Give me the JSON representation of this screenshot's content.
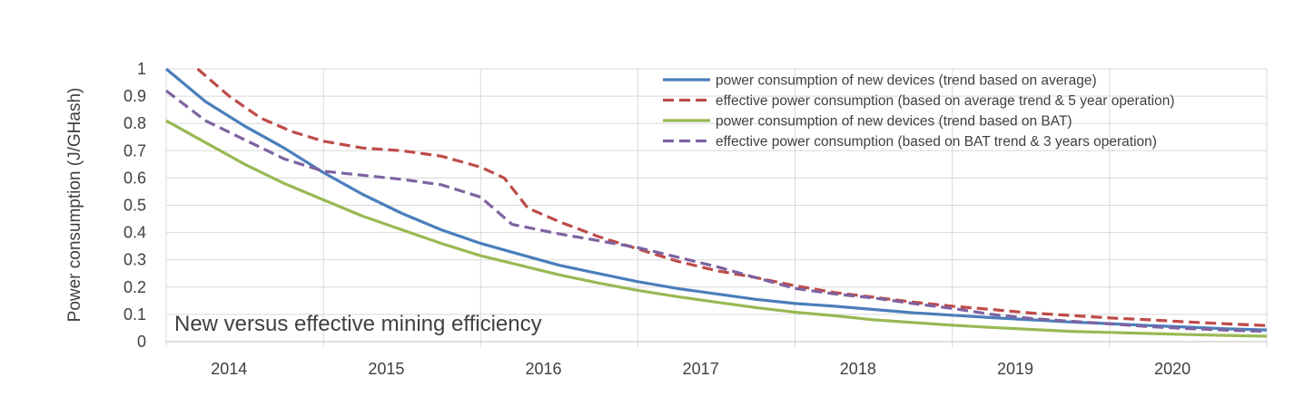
{
  "chart_data": {
    "type": "line",
    "title": "",
    "ylabel": "Power consumption (J/GHash)",
    "xlabel": "",
    "annotation": "New versus effective mining efficiency",
    "xlim": [
      2013.5,
      2020.5
    ],
    "ylim": [
      0,
      1
    ],
    "yticks": [
      "0",
      "0.1",
      "0.2",
      "0.3",
      "0.4",
      "0.5",
      "0.6",
      "0.7",
      "0.8",
      "0.9",
      "1"
    ],
    "xtick_labels": [
      {
        "label": "2014",
        "x": 2013.9
      },
      {
        "label": "2015",
        "x": 2014.9
      },
      {
        "label": "2016",
        "x": 2015.9
      },
      {
        "label": "2017",
        "x": 2016.9
      },
      {
        "label": "2018",
        "x": 2017.9
      },
      {
        "label": "2019",
        "x": 2018.9
      },
      {
        "label": "2020",
        "x": 2019.9
      }
    ],
    "vgrid_x": [
      2013.5,
      2014.5,
      2015.5,
      2016.5,
      2017.5,
      2018.5,
      2019.5,
      2020.5
    ],
    "grid": true,
    "legend_position": "top-right",
    "series": [
      {
        "name": "power consumption of new devices (trend based on average)",
        "color": "#4a7ebb",
        "dash": false,
        "points": [
          [
            2013.5,
            1.0
          ],
          [
            2013.75,
            0.88
          ],
          [
            2014.0,
            0.79
          ],
          [
            2014.25,
            0.71
          ],
          [
            2014.5,
            0.62
          ],
          [
            2014.75,
            0.54
          ],
          [
            2015.0,
            0.47
          ],
          [
            2015.25,
            0.41
          ],
          [
            2015.5,
            0.36
          ],
          [
            2015.75,
            0.32
          ],
          [
            2016.0,
            0.28
          ],
          [
            2016.25,
            0.25
          ],
          [
            2016.5,
            0.22
          ],
          [
            2016.75,
            0.195
          ],
          [
            2017.0,
            0.175
          ],
          [
            2017.25,
            0.155
          ],
          [
            2017.5,
            0.14
          ],
          [
            2017.75,
            0.13
          ],
          [
            2018.0,
            0.118
          ],
          [
            2018.25,
            0.106
          ],
          [
            2018.5,
            0.097
          ],
          [
            2018.75,
            0.088
          ],
          [
            2019.0,
            0.08
          ],
          [
            2019.25,
            0.072
          ],
          [
            2019.5,
            0.066
          ],
          [
            2019.75,
            0.059
          ],
          [
            2020.0,
            0.053
          ],
          [
            2020.25,
            0.047
          ],
          [
            2020.5,
            0.043
          ]
        ]
      },
      {
        "name": "effective power consumption (based on average trend & 5 year operation)",
        "color": "#be4b48",
        "dash": true,
        "points": [
          [
            2013.7,
            1.0
          ],
          [
            2013.9,
            0.9
          ],
          [
            2014.1,
            0.82
          ],
          [
            2014.3,
            0.77
          ],
          [
            2014.5,
            0.735
          ],
          [
            2014.75,
            0.71
          ],
          [
            2015.0,
            0.7
          ],
          [
            2015.25,
            0.68
          ],
          [
            2015.5,
            0.64
          ],
          [
            2015.65,
            0.6
          ],
          [
            2015.8,
            0.49
          ],
          [
            2016.0,
            0.44
          ],
          [
            2016.25,
            0.385
          ],
          [
            2016.5,
            0.34
          ],
          [
            2016.75,
            0.295
          ],
          [
            2017.0,
            0.26
          ],
          [
            2017.25,
            0.235
          ],
          [
            2017.5,
            0.205
          ],
          [
            2017.75,
            0.18
          ],
          [
            2018.0,
            0.163
          ],
          [
            2018.25,
            0.145
          ],
          [
            2018.5,
            0.13
          ],
          [
            2018.75,
            0.118
          ],
          [
            2019.0,
            0.105
          ],
          [
            2019.25,
            0.096
          ],
          [
            2019.5,
            0.087
          ],
          [
            2019.75,
            0.08
          ],
          [
            2020.0,
            0.072
          ],
          [
            2020.25,
            0.065
          ],
          [
            2020.5,
            0.059
          ]
        ]
      },
      {
        "name": "power consumption of new devices (trend based on BAT)",
        "color": "#98b954",
        "dash": false,
        "points": [
          [
            2013.5,
            0.81
          ],
          [
            2013.75,
            0.73
          ],
          [
            2014.0,
            0.65
          ],
          [
            2014.25,
            0.58
          ],
          [
            2014.5,
            0.52
          ],
          [
            2014.75,
            0.46
          ],
          [
            2015.0,
            0.41
          ],
          [
            2015.25,
            0.36
          ],
          [
            2015.5,
            0.315
          ],
          [
            2015.75,
            0.28
          ],
          [
            2016.0,
            0.245
          ],
          [
            2016.25,
            0.215
          ],
          [
            2016.5,
            0.188
          ],
          [
            2016.75,
            0.165
          ],
          [
            2017.0,
            0.145
          ],
          [
            2017.25,
            0.125
          ],
          [
            2017.5,
            0.108
          ],
          [
            2017.75,
            0.095
          ],
          [
            2018.0,
            0.08
          ],
          [
            2018.25,
            0.07
          ],
          [
            2018.5,
            0.06
          ],
          [
            2018.75,
            0.052
          ],
          [
            2019.0,
            0.045
          ],
          [
            2019.25,
            0.038
          ],
          [
            2019.5,
            0.034
          ],
          [
            2019.75,
            0.03
          ],
          [
            2020.0,
            0.026
          ],
          [
            2020.25,
            0.023
          ],
          [
            2020.5,
            0.02
          ]
        ]
      },
      {
        "name": "effective power consumption (based on BAT trend & 3 years operation)",
        "color": "#7e62a1",
        "dash": true,
        "points": [
          [
            2013.5,
            0.92
          ],
          [
            2013.75,
            0.81
          ],
          [
            2014.0,
            0.74
          ],
          [
            2014.25,
            0.67
          ],
          [
            2014.5,
            0.625
          ],
          [
            2014.75,
            0.61
          ],
          [
            2015.0,
            0.595
          ],
          [
            2015.25,
            0.575
          ],
          [
            2015.5,
            0.53
          ],
          [
            2015.7,
            0.43
          ],
          [
            2016.0,
            0.395
          ],
          [
            2016.25,
            0.37
          ],
          [
            2016.5,
            0.345
          ],
          [
            2016.75,
            0.31
          ],
          [
            2017.0,
            0.275
          ],
          [
            2017.25,
            0.235
          ],
          [
            2017.5,
            0.195
          ],
          [
            2017.75,
            0.175
          ],
          [
            2018.0,
            0.16
          ],
          [
            2018.25,
            0.14
          ],
          [
            2018.5,
            0.122
          ],
          [
            2018.75,
            0.1
          ],
          [
            2019.0,
            0.085
          ],
          [
            2019.25,
            0.075
          ],
          [
            2019.5,
            0.065
          ],
          [
            2019.75,
            0.055
          ],
          [
            2020.0,
            0.048
          ],
          [
            2020.25,
            0.042
          ],
          [
            2020.5,
            0.038
          ]
        ]
      }
    ]
  }
}
